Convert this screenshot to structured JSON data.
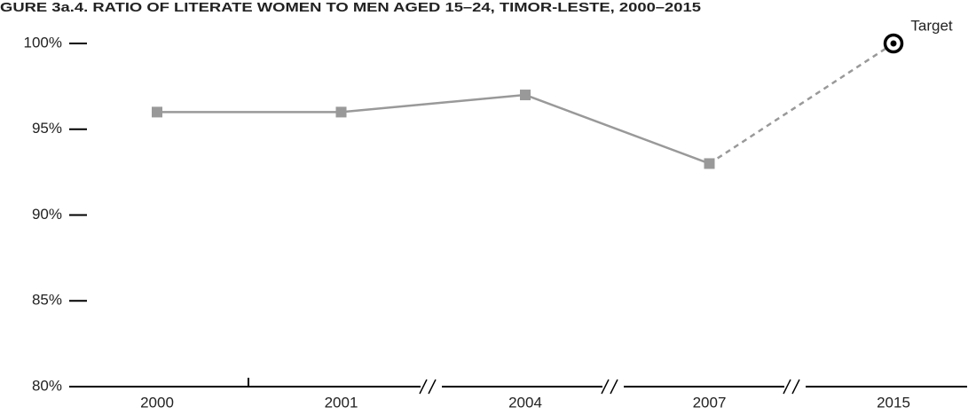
{
  "chart_data": {
    "type": "line",
    "title": "GURE 3a.4. RATIO OF LITERATE WOMEN TO MEN AGED 15–24, TIMOR-LESTE, 2000–2015",
    "categories": [
      "2000",
      "2001",
      "2004",
      "2007",
      "2015"
    ],
    "series": [
      {
        "color": "#999999",
        "values": [
          96,
          96,
          97,
          93,
          null
        ]
      },
      {
        "color": "#000000",
        "values": [
          null,
          null,
          null,
          null,
          100
        ]
      }
    ],
    "annotations": [
      "Target"
    ],
    "ylim": [
      80,
      100
    ],
    "yticks": [
      {
        "value": 80,
        "label": "80%"
      },
      {
        "value": 85,
        "label": "85%"
      },
      {
        "value": 90,
        "label": "90%"
      },
      {
        "value": 95,
        "label": "95%"
      },
      {
        "value": 100,
        "label": "100%"
      }
    ]
  }
}
